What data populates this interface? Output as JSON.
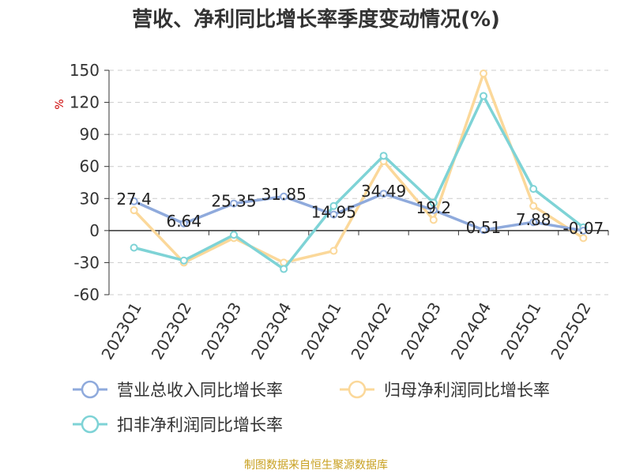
{
  "chart_data": {
    "type": "line",
    "title": "营收、净利同比增长率季度变动情况(%)",
    "ylabel": "%",
    "xlabel": "",
    "categories": [
      "2023Q1",
      "2023Q2",
      "2023Q3",
      "2023Q4",
      "2024Q1",
      "2024Q2",
      "2024Q3",
      "2024Q4",
      "2025Q1",
      "2025Q2"
    ],
    "ylim": [
      -60,
      150
    ],
    "yticks": [
      150,
      120,
      90,
      60,
      30,
      0,
      -30,
      -60
    ],
    "grid": true,
    "legend_position": "bottom",
    "series": [
      {
        "name": "营业总收入同比增长率",
        "color": "#8faadc",
        "values": [
          27.4,
          6.64,
          25.35,
          31.85,
          14.95,
          34.49,
          19.2,
          0.51,
          7.88,
          -0.07
        ],
        "data_labels": [
          "27.4",
          "6.64",
          "25.35",
          "31.85",
          "14.95",
          "34.49",
          "19.2",
          "0.51",
          "7.88",
          "-0.07"
        ]
      },
      {
        "name": "归母净利润同比增长率",
        "color": "#fbd89a",
        "values": [
          19,
          -30,
          -7,
          -30,
          -19,
          65,
          10,
          147,
          23,
          -7
        ]
      },
      {
        "name": "扣非净利润同比增长率",
        "color": "#7ed3d6",
        "values": [
          -16,
          -28,
          -4,
          -36,
          23,
          70,
          26,
          126,
          39,
          3
        ]
      }
    ]
  },
  "source_note": "制图数据来自恒生聚源数据库",
  "colors": {
    "title": "#333333",
    "axis": "#333333",
    "grid": "#cccccc",
    "ylabel": "#cc0000",
    "source": "#c8a020"
  }
}
